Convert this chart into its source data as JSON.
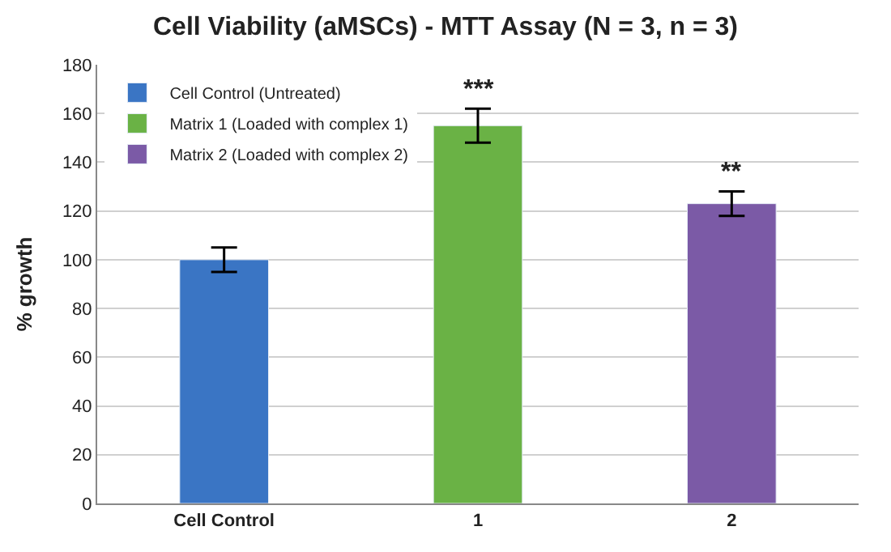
{
  "chart_data": {
    "type": "bar",
    "title": "Cell Viability (aMSCs) - MTT Assay (N = 3, n = 3)",
    "ylabel": "% growth",
    "categories": [
      "Cell Control",
      "1",
      "2"
    ],
    "series": [
      {
        "name": "Cell Control (Untreated)",
        "color": "#3a75c4",
        "values": [
          100,
          null,
          null
        ],
        "errors": [
          5,
          null,
          null
        ]
      },
      {
        "name": "Matrix 1 (Loaded with complex 1)",
        "color": "#6ab245",
        "values": [
          null,
          155,
          null
        ],
        "errors": [
          null,
          7,
          null
        ]
      },
      {
        "name": "Matrix 2 (Loaded with complex 2)",
        "color": "#7b5aa6",
        "values": [
          null,
          null,
          123
        ],
        "errors": [
          null,
          null,
          5
        ]
      }
    ],
    "annotations": [
      {
        "text": "***",
        "x": "1",
        "y": 163
      },
      {
        "text": "**",
        "x": "2",
        "y": 129
      }
    ],
    "ylim": [
      0,
      180
    ],
    "yticks": [
      0,
      20,
      40,
      60,
      80,
      100,
      120,
      140,
      160,
      180
    ],
    "grid": "y",
    "legend": "top left"
  }
}
